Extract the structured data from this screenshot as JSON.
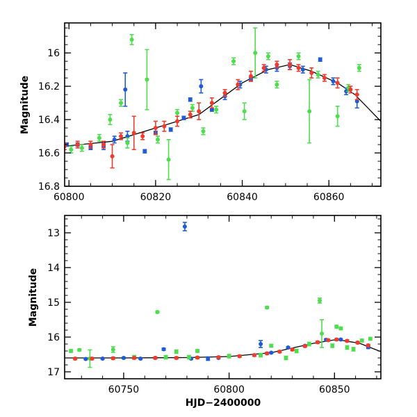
{
  "figure": {
    "xlabel": "HJD−2400000",
    "colors": {
      "blue": "#1f5bd6",
      "green": "#4fdc4f",
      "red": "#ef3b2c",
      "model": "#000000"
    }
  },
  "chart_data": [
    {
      "type": "scatter",
      "ylabel": "Magnitude",
      "xlim": [
        60799,
        60872
      ],
      "ylim": [
        16.8,
        15.82
      ],
      "y_inverted": true,
      "xticks": [
        60800,
        60820,
        60840,
        60860
      ],
      "yticks": [
        16,
        16.2,
        16.4,
        16.6,
        16.8
      ],
      "xticklabels": [
        "60800",
        "60820",
        "60840",
        "60860"
      ],
      "yticklabels": [
        "16",
        "16.2",
        "16.4",
        "16.6",
        "16.8"
      ],
      "model": {
        "x": [
          60799,
          60810,
          60820,
          60830,
          60840,
          60846,
          60851,
          60856,
          60862,
          60866,
          60872
        ],
        "y": [
          16.56,
          16.53,
          16.45,
          16.37,
          16.18,
          16.1,
          16.07,
          16.11,
          16.18,
          16.25,
          16.41
        ]
      },
      "series": [
        {
          "color": "blue",
          "points": [
            [
              60799.5,
              16.55,
              0.01
            ],
            [
              60802,
              16.55,
              0.01
            ],
            [
              60805,
              16.57,
              0.01
            ],
            [
              60808,
              16.56,
              0.02
            ],
            [
              60810.5,
              16.52,
              0.02
            ],
            [
              60813,
              16.22,
              0.1
            ],
            [
              60813.5,
              16.5,
              0.03
            ],
            [
              60817.5,
              16.59,
              0.01
            ],
            [
              60820,
              16.48,
              0.01
            ],
            [
              60823.5,
              16.46,
              0.01
            ],
            [
              60826.5,
              16.39,
              0.01
            ],
            [
              60828,
              16.28,
              0.01
            ],
            [
              60830.5,
              16.2,
              0.04
            ],
            [
              60833,
              16.34,
              0.01
            ],
            [
              60836,
              16.26,
              0.02
            ],
            [
              60839.5,
              16.19,
              0.02
            ],
            [
              60842,
              16.16,
              0.01
            ],
            [
              60845.5,
              16.1,
              0.02
            ],
            [
              60848,
              16.09,
              0.02
            ],
            [
              60851,
              16.08,
              0.02
            ],
            [
              60854,
              16.1,
              0.02
            ],
            [
              60858,
              16.04,
              0.01
            ],
            [
              60861,
              16.17,
              0.02
            ],
            [
              60864,
              16.23,
              0.02
            ],
            [
              60866.5,
              16.29,
              0.04
            ]
          ]
        },
        {
          "color": "green",
          "points": [
            [
              60800.5,
              16.58,
              0.02
            ],
            [
              60803,
              16.57,
              0.02
            ],
            [
              60807,
              16.51,
              0.02
            ],
            [
              60809.5,
              16.4,
              0.03
            ],
            [
              60812,
              16.3,
              0.02
            ],
            [
              60813.5,
              16.54,
              0.03
            ],
            [
              60814.5,
              15.92,
              0.03
            ],
            [
              60818,
              16.16,
              0.18
            ],
            [
              60820.5,
              16.52,
              0.02
            ],
            [
              60823,
              16.64,
              0.12
            ],
            [
              60825,
              16.36,
              0.02
            ],
            [
              60828.5,
              16.33,
              0.02
            ],
            [
              60831,
              16.47,
              0.02
            ],
            [
              60834,
              16.34,
              0.02
            ],
            [
              60838,
              16.05,
              0.02
            ],
            [
              60840.5,
              16.35,
              0.05
            ],
            [
              60843,
              16.0,
              0.15
            ],
            [
              60846,
              16.02,
              0.02
            ],
            [
              60848,
              16.19,
              0.02
            ],
            [
              60853,
              16.02,
              0.02
            ],
            [
              60855.5,
              16.35,
              0.19
            ],
            [
              60857.5,
              16.13,
              0.02
            ],
            [
              60862,
              16.38,
              0.06
            ],
            [
              60864.5,
              16.21,
              0.02
            ],
            [
              60867,
              16.09,
              0.02
            ]
          ]
        },
        {
          "color": "red",
          "points": [
            [
              60799,
              16.56,
              0.02
            ],
            [
              60802,
              16.55,
              0.02
            ],
            [
              60805,
              16.55,
              0.02
            ],
            [
              60808,
              16.55,
              0.02
            ],
            [
              60810,
              16.62,
              0.07
            ],
            [
              60812,
              16.5,
              0.02
            ],
            [
              60815,
              16.48,
              0.1
            ],
            [
              60817,
              16.5,
              0.02
            ],
            [
              60820,
              16.45,
              0.04
            ],
            [
              60822,
              16.44,
              0.03
            ],
            [
              60825,
              16.41,
              0.03
            ],
            [
              60828,
              16.37,
              0.02
            ],
            [
              60830,
              16.35,
              0.05
            ],
            [
              60833,
              16.3,
              0.03
            ],
            [
              60836,
              16.24,
              0.02
            ],
            [
              60839,
              16.19,
              0.03
            ],
            [
              60842,
              16.14,
              0.03
            ],
            [
              60845,
              16.09,
              0.02
            ],
            [
              60848,
              16.07,
              0.02
            ],
            [
              60851,
              16.07,
              0.03
            ],
            [
              60853,
              16.09,
              0.02
            ],
            [
              60856,
              16.12,
              0.03
            ],
            [
              60859,
              16.15,
              0.02
            ],
            [
              60862,
              16.18,
              0.03
            ],
            [
              60865,
              16.22,
              0.02
            ],
            [
              60866.5,
              16.25,
              0.03
            ]
          ]
        }
      ]
    },
    {
      "type": "scatter",
      "ylabel": "Magnitude",
      "xlim": [
        60722,
        60872
      ],
      "ylim": [
        17.2,
        12.5
      ],
      "y_inverted": true,
      "xticks": [
        60750,
        60800,
        60850
      ],
      "yticks": [
        13,
        14,
        15,
        16,
        17
      ],
      "xticklabels": [
        "60750",
        "60800",
        "60850"
      ],
      "yticklabels": [
        "13",
        "14",
        "15",
        "16",
        "17"
      ],
      "model": {
        "x": [
          60722,
          60750,
          60780,
          60800,
          60820,
          60840,
          60851,
          60862,
          60872
        ],
        "y": [
          16.6,
          16.6,
          16.59,
          16.56,
          16.45,
          16.18,
          16.07,
          16.18,
          16.42
        ]
      },
      "series": [
        {
          "color": "blue",
          "points": [
            [
              60732,
              16.63,
              0.02
            ],
            [
              60740,
              16.62,
              0.02
            ],
            [
              60750,
              16.6,
              0.02
            ],
            [
              60758,
              16.62,
              0.02
            ],
            [
              60765,
              16.6,
              0.02
            ],
            [
              60769,
              16.35,
              0.03
            ],
            [
              60779,
              12.82,
              0.12
            ],
            [
              60782,
              16.62,
              0.02
            ],
            [
              60790,
              16.62,
              0.05
            ],
            [
              60795,
              16.6,
              0.02
            ],
            [
              60815,
              16.2,
              0.1
            ],
            [
              60820,
              16.45,
              0.02
            ],
            [
              60828,
              16.3,
              0.02
            ],
            [
              60836,
              16.25,
              0.02
            ],
            [
              60846,
              16.08,
              0.03
            ],
            [
              60853,
              16.07,
              0.02
            ],
            [
              60861,
              16.16,
              0.02
            ],
            [
              60866,
              16.29,
              0.04
            ]
          ]
        },
        {
          "color": "green",
          "points": [
            [
              60725,
              16.4,
              0.04
            ],
            [
              60729,
              16.37,
              0.03
            ],
            [
              60734,
              16.62,
              0.25
            ],
            [
              60745,
              16.36,
              0.08
            ],
            [
              60755,
              16.58,
              0.05
            ],
            [
              60766,
              15.28,
              0.03
            ],
            [
              60770,
              16.58,
              0.05
            ],
            [
              60775,
              16.42,
              0.05
            ],
            [
              60781,
              16.58,
              0.05
            ],
            [
              60785,
              16.4,
              0.04
            ],
            [
              60800,
              16.55,
              0.05
            ],
            [
              60815,
              16.52,
              0.05
            ],
            [
              60818,
              15.15,
              0.03
            ],
            [
              60820,
              16.25,
              0.04
            ],
            [
              60827,
              16.6,
              0.05
            ],
            [
              60832,
              16.4,
              0.05
            ],
            [
              60838,
              16.2,
              0.05
            ],
            [
              60843,
              14.95,
              0.07
            ],
            [
              60844,
              15.9,
              0.4
            ],
            [
              60849,
              16.25,
              0.05
            ],
            [
              60851,
              15.7,
              0.04
            ],
            [
              60853,
              15.75,
              0.04
            ],
            [
              60856,
              16.3,
              0.05
            ],
            [
              60859,
              16.35,
              0.05
            ],
            [
              60863,
              16.1,
              0.04
            ],
            [
              60867,
              16.05,
              0.04
            ]
          ]
        },
        {
          "color": "red",
          "points": [
            [
              60727,
              16.62,
              0.03
            ],
            [
              60735,
              16.62,
              0.03
            ],
            [
              60745,
              16.61,
              0.03
            ],
            [
              60755,
              16.6,
              0.03
            ],
            [
              60765,
              16.6,
              0.03
            ],
            [
              60775,
              16.6,
              0.03
            ],
            [
              60785,
              16.59,
              0.03
            ],
            [
              60795,
              16.58,
              0.03
            ],
            [
              60805,
              16.55,
              0.03
            ],
            [
              60812,
              16.52,
              0.03
            ],
            [
              60818,
              16.47,
              0.03
            ],
            [
              60824,
              16.42,
              0.03
            ],
            [
              60830,
              16.36,
              0.03
            ],
            [
              60836,
              16.26,
              0.03
            ],
            [
              60842,
              16.15,
              0.03
            ],
            [
              60847,
              16.09,
              0.03
            ],
            [
              60851,
              16.07,
              0.03
            ],
            [
              60856,
              16.11,
              0.03
            ],
            [
              60861,
              16.16,
              0.03
            ],
            [
              60866,
              16.24,
              0.03
            ]
          ]
        }
      ]
    }
  ]
}
